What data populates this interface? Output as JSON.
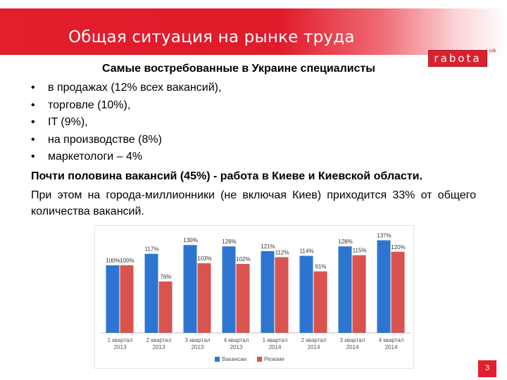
{
  "header": {
    "title": "Общая ситуация на рынке труда",
    "logo": {
      "text": "rabota",
      "suffix": "ua",
      "color": "#d8222f"
    }
  },
  "content": {
    "heading": "Самые востребованные в Украине специалисты",
    "bullets": [
      "в продажах (12% всех вакансий),",
      "торговле (10%),",
      "IT (9%),",
      "на производстве (8%)",
      "маркетологи – 4%"
    ],
    "paragraph_bold": "Почти половина вакансий (45%) - работа в Киеве и Киевской области.",
    "paragraph": "При этом на города-миллионники (не включая Киев) приходится 33% от общего количества вакансий."
  },
  "chart_data": {
    "type": "bar",
    "categories": [
      [
        "1 квартал",
        "2013"
      ],
      [
        "2 квартал",
        "2013"
      ],
      [
        "3 квартал",
        "2013"
      ],
      [
        "4 квартал",
        "2013"
      ],
      [
        "1 квартал",
        "2014"
      ],
      [
        "2 квартал",
        "2014"
      ],
      [
        "3 квартал",
        "2014"
      ],
      [
        "4 квартал",
        "2014"
      ]
    ],
    "series": [
      {
        "name": "Вакансии",
        "values": [
          100,
          117,
          130,
          128,
          121,
          114,
          128,
          137
        ],
        "labels": [
          "100%",
          "117%",
          "130%",
          "128%",
          "121%",
          "114%",
          "128%",
          "137%"
        ],
        "color": "#2e75d1"
      },
      {
        "name": "Резюме",
        "values": [
          100,
          76,
          103,
          102,
          112,
          91,
          115,
          120
        ],
        "labels": [
          "100%",
          "76%",
          "103%",
          "102%",
          "112%",
          "91%",
          "115%",
          "120%"
        ],
        "color": "#d9534f"
      }
    ],
    "ylim": [
      0,
      150
    ],
    "legend": "bottom",
    "grid": false
  },
  "footer": {
    "page_number": "3",
    "color": "#e31e2d"
  }
}
